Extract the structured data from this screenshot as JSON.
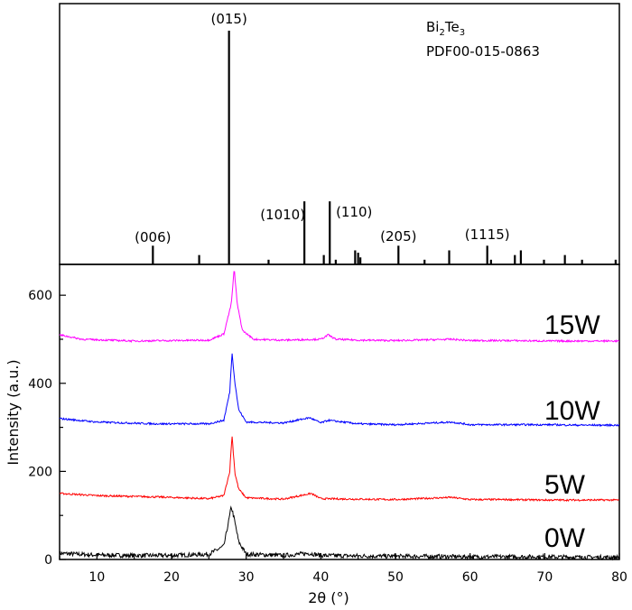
{
  "chart_data": [
    {
      "type": "bar",
      "panel": "reference",
      "reference_lines": [
        {
          "title": "Bi2Te3"
        },
        {
          "title": "PDF00-015-0863"
        }
      ],
      "x": [
        17.5,
        23.7,
        27.7,
        33.0,
        37.8,
        40.4,
        41.2,
        42.0,
        44.6,
        45.0,
        45.3,
        50.4,
        53.9,
        57.2,
        62.3,
        62.8,
        66.0,
        66.8,
        69.9,
        72.7,
        75.0,
        79.5
      ],
      "values": [
        0.08,
        0.04,
        1.0,
        0.02,
        0.27,
        0.04,
        0.27,
        0.02,
        0.06,
        0.05,
        0.03,
        0.08,
        0.02,
        0.06,
        0.08,
        0.02,
        0.04,
        0.06,
        0.02,
        0.04,
        0.02,
        0.02
      ],
      "peak_labels": [
        {
          "text": "(006)",
          "x": 17.5
        },
        {
          "text": "(015)",
          "x": 27.7
        },
        {
          "text": "(1010)",
          "x": 37.8
        },
        {
          "text": "(110)",
          "x": 41.2
        },
        {
          "text": "(205)",
          "x": 50.4
        },
        {
          "text": "(1115)",
          "x": 62.3
        }
      ],
      "xlim": [
        5,
        80
      ]
    },
    {
      "type": "line",
      "panel": "xrd",
      "xlabel": "2θ (°)",
      "ylabel": "Intensity (a.u.)",
      "xlim": [
        5,
        80
      ],
      "ylim": [
        0,
        670
      ],
      "xticks": [
        10,
        20,
        30,
        40,
        50,
        60,
        70,
        80
      ],
      "yticks": [
        0,
        200,
        400,
        600
      ],
      "series": [
        {
          "name": "0W",
          "color": "#000000",
          "offset": 0,
          "noise": 5,
          "x": [
            5,
            10,
            15,
            20,
            25,
            27,
            27.8,
            28.0,
            28.3,
            29.0,
            30,
            35,
            38.5,
            40,
            45,
            50,
            55,
            60,
            65,
            70,
            75,
            80
          ],
          "values": [
            14,
            10,
            9,
            9,
            12,
            30,
            100,
            120,
            100,
            40,
            12,
            9,
            14,
            9,
            8,
            7,
            7,
            6,
            6,
            6,
            5,
            5
          ]
        },
        {
          "name": "5W",
          "color": "#ff0000",
          "offset": 0,
          "noise": 2,
          "x": [
            5,
            10,
            18,
            25,
            27,
            27.8,
            28.1,
            28.5,
            29,
            30,
            35,
            38.7,
            40,
            45,
            50,
            57.5,
            60,
            65,
            70,
            75,
            80
          ],
          "values": [
            150,
            145,
            142,
            138,
            145,
            200,
            283,
            195,
            160,
            140,
            137,
            150,
            138,
            137,
            136,
            141,
            136,
            136,
            135,
            135,
            135
          ]
        },
        {
          "name": "10W",
          "color": "#0000ff",
          "offset": 0,
          "noise": 2,
          "x": [
            5,
            10,
            18,
            25,
            27,
            27.8,
            28.1,
            28.5,
            29,
            30,
            35,
            38.5,
            40,
            41,
            45,
            50,
            57.5,
            60,
            65,
            70,
            75,
            80
          ],
          "values": [
            320,
            312,
            308,
            308,
            316,
            380,
            470,
            400,
            340,
            312,
            310,
            322,
            310,
            316,
            308,
            306,
            312,
            306,
            306,
            306,
            305,
            305
          ]
        },
        {
          "name": "15W",
          "color": "#ff00ff",
          "offset": 0,
          "noise": 2,
          "x": [
            5,
            8,
            15,
            25,
            27,
            28.0,
            28.4,
            28.8,
            29.5,
            31,
            35,
            40,
            41,
            42,
            45,
            50,
            57.5,
            60,
            65,
            70,
            75,
            80
          ],
          "values": [
            510,
            500,
            496,
            498,
            512,
            580,
            660,
            580,
            520,
            500,
            498,
            500,
            510,
            500,
            498,
            497,
            500,
            497,
            497,
            496,
            496,
            496
          ]
        }
      ]
    }
  ]
}
